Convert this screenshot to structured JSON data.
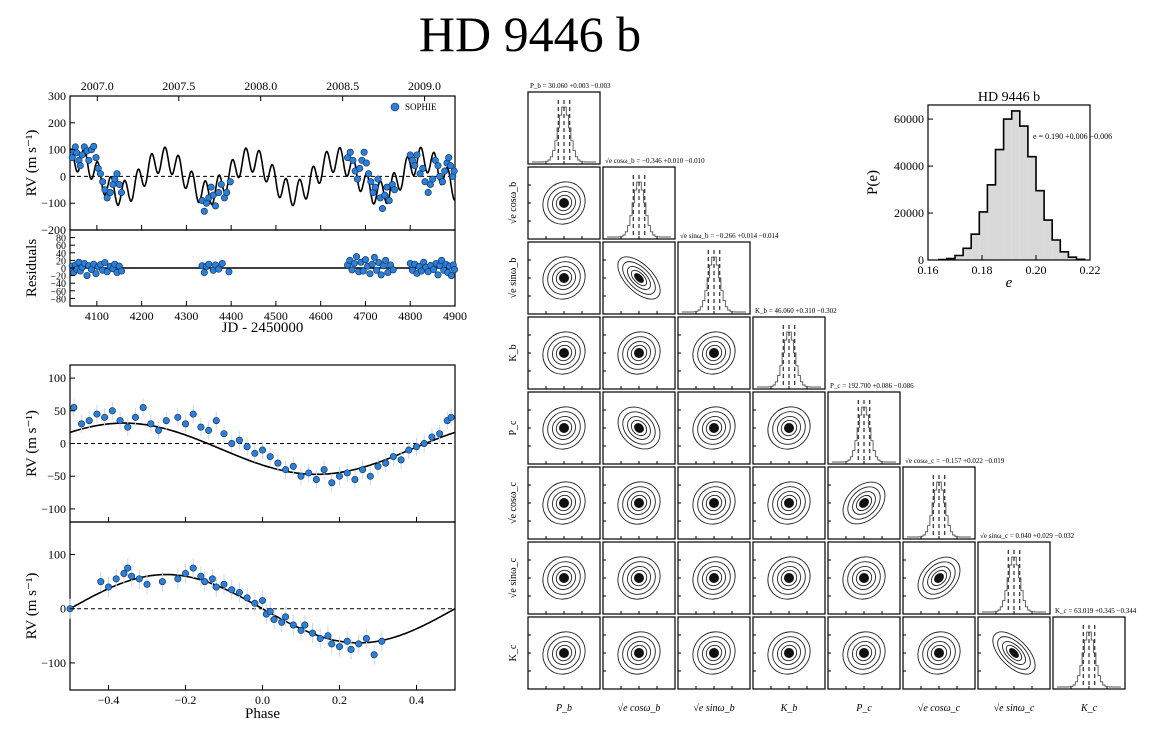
{
  "title": "HD 9446 b",
  "chart_data": [
    {
      "id": "timeseries",
      "type": "scatter",
      "ylabel": "RV (m s⁻¹)",
      "xlim": [
        4040,
        4900
      ],
      "ylim": [
        -200,
        300
      ],
      "yticks": [
        -200,
        -100,
        0,
        100,
        200,
        300
      ],
      "xticks": [
        4100,
        4200,
        4300,
        4400,
        4500,
        4600,
        4700,
        4800,
        4900
      ],
      "top_ticks": [
        {
          "label": "2007.0",
          "jd": 4101
        },
        {
          "label": "2007.5",
          "jd": 4283
        },
        {
          "label": "2008.0",
          "jd": 4466
        },
        {
          "label": "2008.5",
          "jd": 4649
        },
        {
          "label": "2009.0",
          "jd": 4832
        }
      ],
      "legend": {
        "label": "SOPHIE",
        "position": "top-right"
      },
      "model": {
        "P_b": 30.06,
        "K_b": 46.06,
        "P_c": 192.7,
        "K_c": 63.02
      },
      "points": [
        [
          4045,
          70
        ],
        [
          4048,
          95
        ],
        [
          4052,
          110
        ],
        [
          4055,
          88
        ],
        [
          4060,
          60
        ],
        [
          4063,
          40
        ],
        [
          4067,
          80
        ],
        [
          4072,
          110
        ],
        [
          4078,
          95
        ],
        [
          4082,
          60
        ],
        [
          4088,
          100
        ],
        [
          4093,
          112
        ],
        [
          4098,
          70
        ],
        [
          4103,
          30
        ],
        [
          4108,
          10
        ],
        [
          4113,
          -20
        ],
        [
          4118,
          -50
        ],
        [
          4123,
          -80
        ],
        [
          4130,
          -60
        ],
        [
          4136,
          -30
        ],
        [
          4140,
          -10
        ],
        [
          4145,
          10
        ],
        [
          4150,
          -30
        ],
        [
          4155,
          -60
        ],
        [
          4335,
          -90
        ],
        [
          4340,
          -130
        ],
        [
          4345,
          -100
        ],
        [
          4350,
          -80
        ],
        [
          4355,
          -40
        ],
        [
          4360,
          -70
        ],
        [
          4365,
          -110
        ],
        [
          4372,
          -60
        ],
        [
          4378,
          -30
        ],
        [
          4385,
          -80
        ],
        [
          4390,
          -60
        ],
        [
          4398,
          -20
        ],
        [
          4660,
          70
        ],
        [
          4666,
          90
        ],
        [
          4672,
          60
        ],
        [
          4677,
          20
        ],
        [
          4682,
          -10
        ],
        [
          4687,
          30
        ],
        [
          4692,
          60
        ],
        [
          4697,
          90
        ],
        [
          4702,
          50
        ],
        [
          4707,
          10
        ],
        [
          4712,
          -20
        ],
        [
          4717,
          -60
        ],
        [
          4722,
          -40
        ],
        [
          4728,
          -10
        ],
        [
          4733,
          -80
        ],
        [
          4738,
          -120
        ],
        [
          4743,
          -70
        ],
        [
          4748,
          -40
        ],
        [
          4753,
          -90
        ],
        [
          4760,
          -30
        ],
        [
          4765,
          -50
        ],
        [
          4800,
          80
        ],
        [
          4805,
          60
        ],
        [
          4810,
          40
        ],
        [
          4815,
          80
        ],
        [
          4822,
          10
        ],
        [
          4828,
          30
        ],
        [
          4833,
          -20
        ],
        [
          4840,
          -60
        ],
        [
          4845,
          -30
        ],
        [
          4850,
          -10
        ],
        [
          4856,
          60
        ],
        [
          4862,
          40
        ],
        [
          4866,
          0
        ],
        [
          4872,
          -20
        ],
        [
          4877,
          20
        ],
        [
          4882,
          50
        ],
        [
          4886,
          70
        ],
        [
          4890,
          40
        ],
        [
          4895,
          0
        ],
        [
          4898,
          20
        ]
      ]
    },
    {
      "id": "residuals",
      "type": "scatter",
      "ylabel": "Residuals",
      "xlabel": "JD - 2450000",
      "xlim": [
        4040,
        4900
      ],
      "ylim": [
        -100,
        100
      ],
      "yticks": [
        -80,
        -60,
        -40,
        -20,
        0,
        20,
        40,
        60,
        80
      ],
      "xticks": [
        4100,
        4200,
        4300,
        4400,
        4500,
        4600,
        4700,
        4800,
        4900
      ],
      "points": [
        [
          4045,
          5
        ],
        [
          4048,
          -12
        ],
        [
          4052,
          8
        ],
        [
          4055,
          -3
        ],
        [
          4060,
          15
        ],
        [
          4063,
          -8
        ],
        [
          4067,
          2
        ],
        [
          4072,
          12
        ],
        [
          4078,
          -20
        ],
        [
          4082,
          6
        ],
        [
          4088,
          -4
        ],
        [
          4093,
          10
        ],
        [
          4098,
          -15
        ],
        [
          4103,
          3
        ],
        [
          4108,
          9
        ],
        [
          4113,
          -6
        ],
        [
          4118,
          14
        ],
        [
          4123,
          -10
        ],
        [
          4130,
          4
        ],
        [
          4136,
          -2
        ],
        [
          4140,
          10
        ],
        [
          4145,
          -12
        ],
        [
          4150,
          5
        ],
        [
          4155,
          -8
        ],
        [
          4335,
          6
        ],
        [
          4340,
          -12
        ],
        [
          4345,
          4
        ],
        [
          4350,
          10
        ],
        [
          4360,
          -6
        ],
        [
          4365,
          8
        ],
        [
          4372,
          -3
        ],
        [
          4380,
          12
        ],
        [
          4395,
          -10
        ],
        [
          4660,
          8
        ],
        [
          4665,
          20
        ],
        [
          4670,
          -5
        ],
        [
          4675,
          12
        ],
        [
          4680,
          30
        ],
        [
          4685,
          -10
        ],
        [
          4690,
          15
        ],
        [
          4695,
          -8
        ],
        [
          4700,
          22
        ],
        [
          4705,
          5
        ],
        [
          4710,
          -15
        ],
        [
          4715,
          10
        ],
        [
          4720,
          28
        ],
        [
          4725,
          -6
        ],
        [
          4730,
          14
        ],
        [
          4735,
          -18
        ],
        [
          4740,
          6
        ],
        [
          4745,
          20
        ],
        [
          4750,
          -12
        ],
        [
          4756,
          8
        ],
        [
          4762,
          -5
        ],
        [
          4800,
          12
        ],
        [
          4805,
          -6
        ],
        [
          4810,
          10
        ],
        [
          4815,
          -14
        ],
        [
          4820,
          4
        ],
        [
          4825,
          -8
        ],
        [
          4830,
          15
        ],
        [
          4835,
          2
        ],
        [
          4840,
          -10
        ],
        [
          4846,
          7
        ],
        [
          4852,
          -4
        ],
        [
          4858,
          12
        ],
        [
          4862,
          -18
        ],
        [
          4866,
          6
        ],
        [
          4870,
          20
        ],
        [
          4875,
          -6
        ],
        [
          4880,
          10
        ],
        [
          4884,
          -12
        ],
        [
          4888,
          5
        ],
        [
          4892,
          -20
        ],
        [
          4896,
          8
        ],
        [
          4899,
          -4
        ]
      ]
    },
    {
      "id": "phase-b",
      "type": "scatter",
      "ylabel": "RV (m s⁻¹)",
      "xlim": [
        -0.5,
        0.5
      ],
      "ylim": [
        -120,
        120
      ],
      "yticks": [
        -100,
        -50,
        0,
        50,
        100
      ],
      "xticks": [
        -0.4,
        -0.2,
        0.0,
        0.2,
        0.4
      ],
      "model": {
        "K": 46.06,
        "phi0": -0.72
      },
      "points": [
        [
          -0.49,
          55
        ],
        [
          -0.47,
          30
        ],
        [
          -0.45,
          35
        ],
        [
          -0.43,
          45
        ],
        [
          -0.41,
          40
        ],
        [
          -0.39,
          50
        ],
        [
          -0.37,
          35
        ],
        [
          -0.35,
          25
        ],
        [
          -0.33,
          40
        ],
        [
          -0.31,
          55
        ],
        [
          -0.29,
          30
        ],
        [
          -0.27,
          20
        ],
        [
          -0.25,
          35
        ],
        [
          -0.22,
          40
        ],
        [
          -0.2,
          30
        ],
        [
          -0.18,
          45
        ],
        [
          -0.16,
          25
        ],
        [
          -0.14,
          20
        ],
        [
          -0.12,
          35
        ],
        [
          -0.1,
          15
        ],
        [
          -0.08,
          0
        ],
        [
          -0.06,
          5
        ],
        [
          -0.04,
          -5
        ],
        [
          -0.02,
          -15
        ],
        [
          0.0,
          -10
        ],
        [
          0.02,
          -20
        ],
        [
          0.04,
          -30
        ],
        [
          0.06,
          -40
        ],
        [
          0.08,
          -35
        ],
        [
          0.1,
          -50
        ],
        [
          0.12,
          -45
        ],
        [
          0.14,
          -55
        ],
        [
          0.16,
          -40
        ],
        [
          0.18,
          -60
        ],
        [
          0.2,
          -50
        ],
        [
          0.22,
          -45
        ],
        [
          0.24,
          -55
        ],
        [
          0.26,
          -40
        ],
        [
          0.28,
          -50
        ],
        [
          0.3,
          -35
        ],
        [
          0.32,
          -30
        ],
        [
          0.34,
          -20
        ],
        [
          0.36,
          -25
        ],
        [
          0.38,
          -10
        ],
        [
          0.4,
          -5
        ],
        [
          0.42,
          0
        ],
        [
          0.44,
          10
        ],
        [
          0.46,
          15
        ],
        [
          0.48,
          35
        ],
        [
          0.49,
          40
        ]
      ]
    },
    {
      "id": "phase-c",
      "type": "scatter",
      "ylabel": "RV (m s⁻¹)",
      "xlabel": "Phase",
      "xlim": [
        -0.5,
        0.5
      ],
      "ylim": [
        -150,
        160
      ],
      "yticks": [
        -100,
        0,
        100
      ],
      "xticks": [
        -0.4,
        -0.2,
        0.0,
        0.2,
        0.4
      ],
      "model": {
        "K": 63.02,
        "phi0": -0.53
      },
      "points": [
        [
          -0.5,
          0
        ],
        [
          -0.42,
          50
        ],
        [
          -0.4,
          40
        ],
        [
          -0.38,
          55
        ],
        [
          -0.36,
          65
        ],
        [
          -0.35,
          75
        ],
        [
          -0.34,
          60
        ],
        [
          -0.32,
          55
        ],
        [
          -0.3,
          45
        ],
        [
          -0.26,
          50
        ],
        [
          -0.22,
          55
        ],
        [
          -0.2,
          65
        ],
        [
          -0.18,
          75
        ],
        [
          -0.16,
          60
        ],
        [
          -0.15,
          50
        ],
        [
          -0.13,
          55
        ],
        [
          -0.12,
          40
        ],
        [
          -0.1,
          45
        ],
        [
          -0.08,
          35
        ],
        [
          -0.06,
          30
        ],
        [
          -0.04,
          20
        ],
        [
          -0.02,
          10
        ],
        [
          0.0,
          15
        ],
        [
          0.01,
          -10
        ],
        [
          0.02,
          -5
        ],
        [
          0.03,
          -20
        ],
        [
          0.05,
          -25
        ],
        [
          0.06,
          -15
        ],
        [
          0.08,
          -30
        ],
        [
          0.1,
          -40
        ],
        [
          0.11,
          -30
        ],
        [
          0.13,
          -45
        ],
        [
          0.15,
          -55
        ],
        [
          0.17,
          -50
        ],
        [
          0.18,
          -65
        ],
        [
          0.2,
          -70
        ],
        [
          0.22,
          -60
        ],
        [
          0.23,
          -75
        ],
        [
          0.25,
          -65
        ],
        [
          0.27,
          -55
        ],
        [
          0.29,
          -85
        ],
        [
          0.31,
          -60
        ]
      ]
    },
    {
      "id": "eccentricity-histogram",
      "type": "bar",
      "title": "HD 9446 b",
      "xlabel": "e",
      "ylabel": "P(e)",
      "annotation": "e = 0.190 +0.006 −0.006",
      "xlim": [
        0.16,
        0.22
      ],
      "ylim": [
        0,
        66000
      ],
      "xticks": [
        0.16,
        0.18,
        0.2,
        0.22
      ],
      "yticks": [
        0,
        20000,
        40000,
        60000
      ],
      "bin_centers": [
        0.1655,
        0.1685,
        0.1715,
        0.1745,
        0.1775,
        0.1805,
        0.1835,
        0.1865,
        0.1895,
        0.1925,
        0.1955,
        0.1985,
        0.2015,
        0.2045,
        0.2075,
        0.2105,
        0.2135,
        0.2165
      ],
      "values": [
        150,
        600,
        1900,
        5000,
        11000,
        20500,
        32000,
        47000,
        60000,
        63500,
        57000,
        44000,
        29500,
        17000,
        8500,
        3500,
        1200,
        300
      ]
    },
    {
      "id": "corner-plot",
      "type": "scatter",
      "labels": [
        "P_b",
        "√e cosω_b",
        "√e sinω_b",
        "K_b",
        "P_c",
        "√e cosω_c",
        "√e sinω_c",
        "K_c"
      ],
      "summaries": [
        "P_b = 30.060 +0.003 −0.003",
        "√e cosω_b = −0.346 +0.010 −0.010",
        "√e sinω_b = −0.266 +0.014 −0.014",
        "K_b = 46.060 +0.310 −0.302",
        "P_c = 192.700 +0.086 −0.086",
        "√e cosω_c = −0.157 +0.022 −0.019",
        "√e sinω_c = 0.040 +0.029 −0.032",
        "K_c = 63.019 +0.345 −0.344"
      ],
      "correlations": {
        "2-1": -0.6,
        "4-1": -0.2,
        "5-4": 0.3,
        "6-5": 0.3,
        "7-6": -0.6
      }
    }
  ]
}
